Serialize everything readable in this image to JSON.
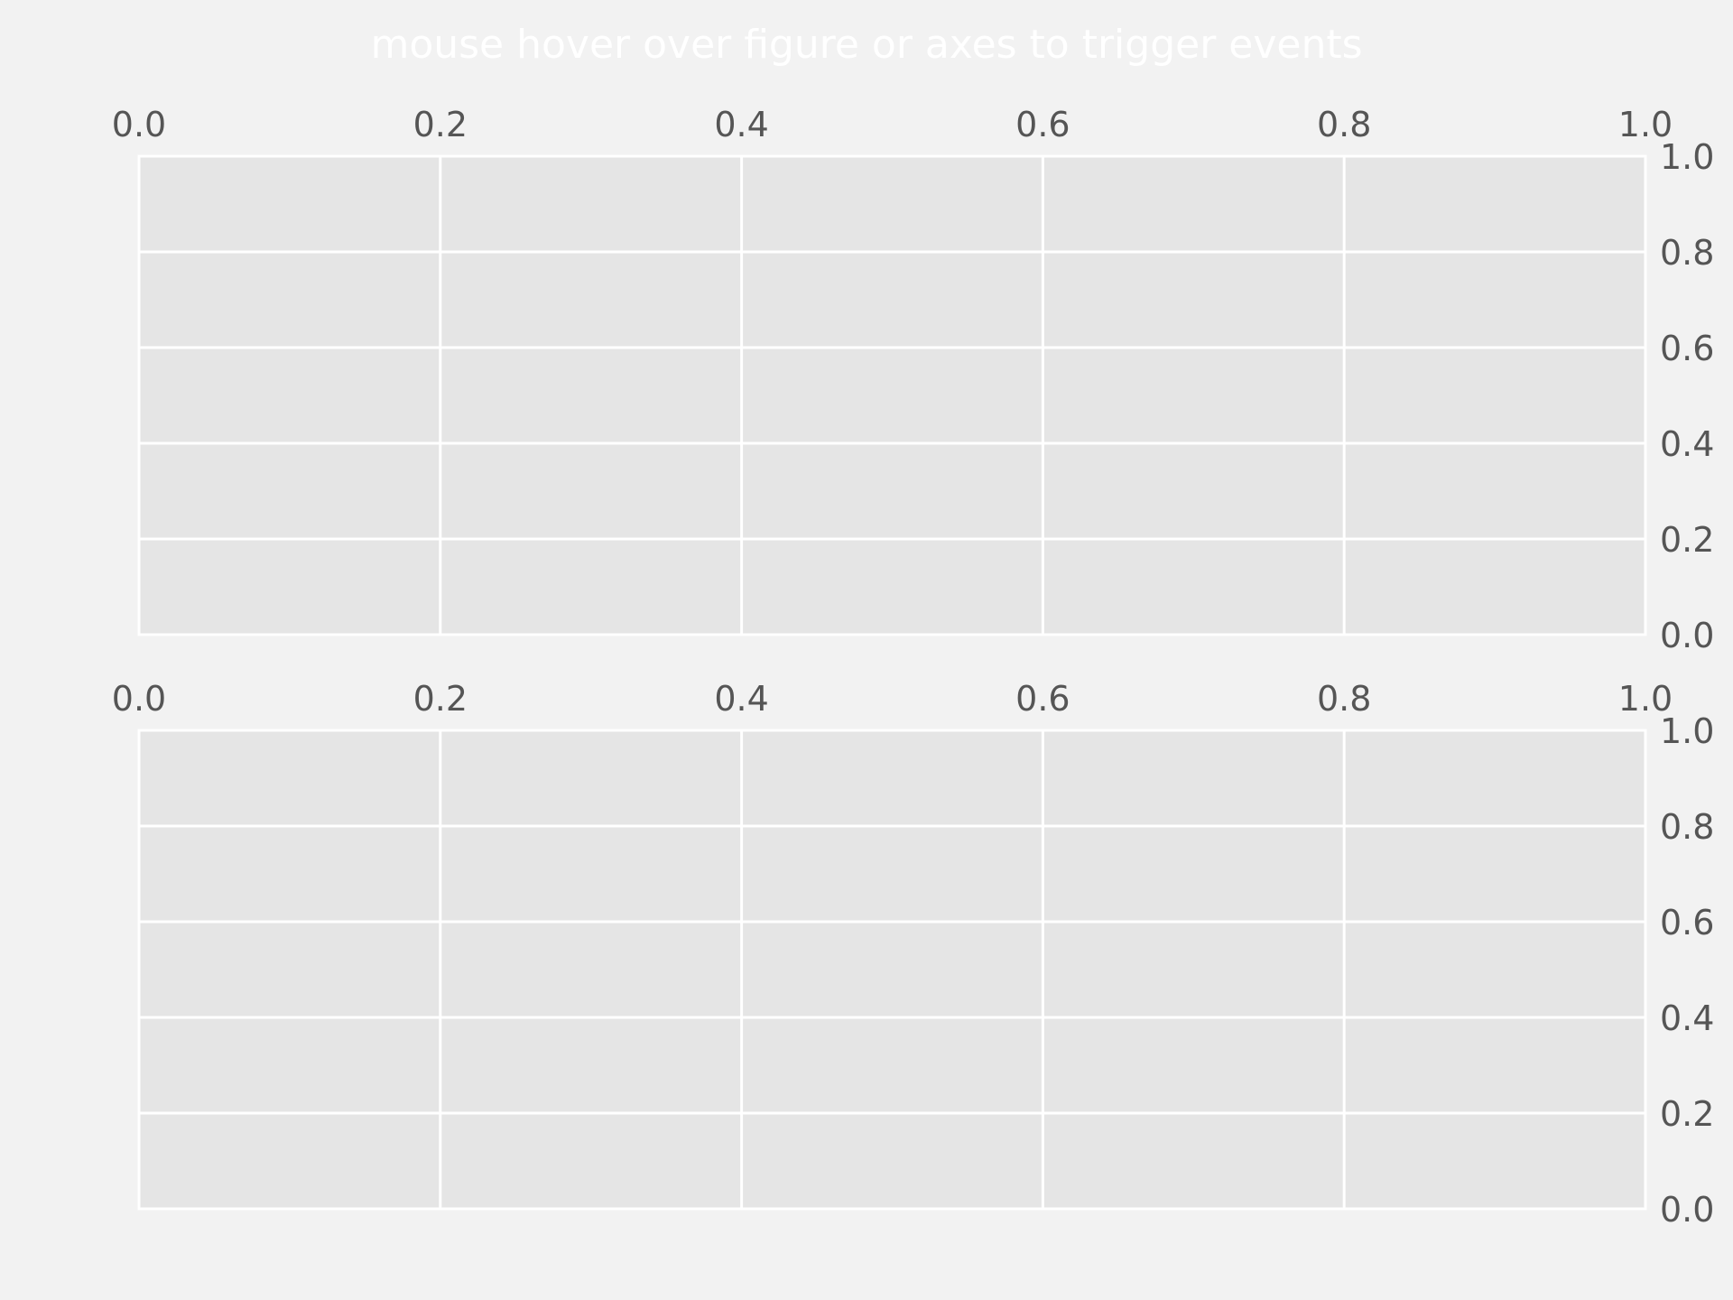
{
  "figure": {
    "title": "mouse hover over figure or axes to trigger events",
    "background_color": "#f2f2f2",
    "title_color": "#ffffff"
  },
  "chart_data": [
    {
      "type": "line",
      "title": "",
      "xlabel": "",
      "ylabel": "",
      "series": [],
      "xlim": [
        0.0,
        1.0
      ],
      "ylim": [
        0.0,
        1.0
      ],
      "xticks": [
        "0.0",
        "0.2",
        "0.4",
        "0.6",
        "0.8",
        "1.0"
      ],
      "yticks": [
        "0.0",
        "0.2",
        "0.4",
        "0.6",
        "0.8",
        "1.0"
      ],
      "xaxis_position": "top",
      "yaxis_position": "right",
      "grid": true,
      "axes_facecolor": "#e5e5e5",
      "grid_color": "#ffffff",
      "tick_label_color": "#555555"
    },
    {
      "type": "line",
      "title": "",
      "xlabel": "",
      "ylabel": "",
      "series": [],
      "xlim": [
        0.0,
        1.0
      ],
      "ylim": [
        0.0,
        1.0
      ],
      "xticks": [
        "0.0",
        "0.2",
        "0.4",
        "0.6",
        "0.8",
        "1.0"
      ],
      "yticks": [
        "0.0",
        "0.2",
        "0.4",
        "0.6",
        "0.8",
        "1.0"
      ],
      "xaxis_position": "top",
      "yaxis_position": "right",
      "grid": true,
      "axes_facecolor": "#e5e5e5",
      "grid_color": "#ffffff",
      "tick_label_color": "#555555"
    }
  ]
}
